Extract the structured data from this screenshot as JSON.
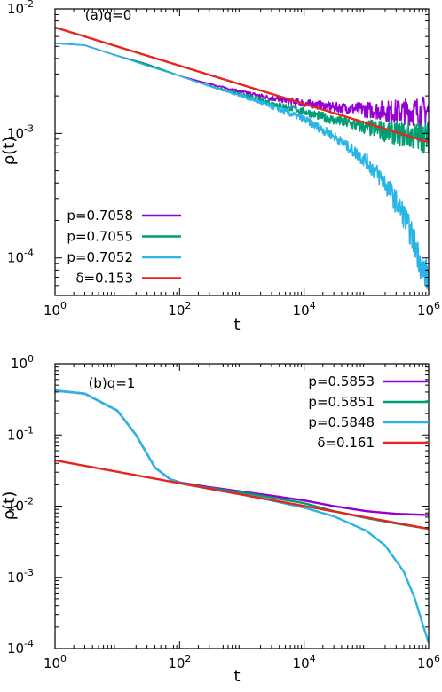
{
  "chart_data": [
    {
      "type": "line",
      "title": "(a)q=0",
      "xlabel": "t",
      "ylabel": "ρ(t)",
      "xscale": "log",
      "yscale": "log",
      "xlim": [
        1,
        1000000
      ],
      "ylim": [
        5e-05,
        0.01
      ],
      "x_ticks": [
        {
          "value": 1,
          "base": "10",
          "exp": "0"
        },
        {
          "value": 100,
          "base": "10",
          "exp": "2"
        },
        {
          "value": 10000,
          "base": "10",
          "exp": "4"
        },
        {
          "value": 1000000,
          "base": "10",
          "exp": "6"
        }
      ],
      "y_ticks": [
        {
          "value": 0.0001,
          "base": "10",
          "exp": "-4"
        },
        {
          "value": 0.001,
          "base": "10",
          "exp": "-3"
        },
        {
          "value": 0.01,
          "base": "10",
          "exp": "-2"
        }
      ],
      "legend_position": "bottom-left",
      "grid": false,
      "series": [
        {
          "name": "p=0.7058",
          "color": "#9400d3",
          "noisy": true,
          "x": [
            1,
            3,
            10,
            30,
            100,
            300,
            1000,
            3000,
            10000,
            30000,
            100000,
            300000,
            1000000
          ],
          "y": [
            0.0053,
            0.0051,
            0.0042,
            0.0036,
            0.0029,
            0.0025,
            0.00215,
            0.00192,
            0.00175,
            0.00162,
            0.00155,
            0.0015,
            0.0015
          ]
        },
        {
          "name": "p=0.7055",
          "color": "#009e73",
          "noisy": true,
          "x": [
            1,
            3,
            10,
            30,
            100,
            300,
            1000,
            3000,
            10000,
            30000,
            100000,
            300000,
            1000000
          ],
          "y": [
            0.0053,
            0.0051,
            0.0042,
            0.0036,
            0.0029,
            0.0024,
            0.00205,
            0.00175,
            0.0015,
            0.00128,
            0.00112,
            0.001,
            0.00092
          ]
        },
        {
          "name": "p=0.7052",
          "color": "#2ab4e8",
          "noisy": true,
          "x": [
            1,
            3,
            10,
            30,
            100,
            300,
            1000,
            3000,
            10000,
            30000,
            100000,
            200000,
            400000,
            600000,
            800000,
            1000000
          ],
          "y": [
            0.0053,
            0.0051,
            0.0042,
            0.0035,
            0.0029,
            0.0024,
            0.002,
            0.00165,
            0.0013,
            0.00095,
            0.0006,
            0.0004,
            0.00022,
            0.00013,
            8e-05,
            7e-05
          ]
        },
        {
          "name": "δ=0.153",
          "color": "#e8241c",
          "noisy": false,
          "x": [
            1,
            1000000
          ],
          "y": [
            0.0071,
            0.00085
          ]
        }
      ]
    },
    {
      "type": "line",
      "title": "(b)q=1",
      "xlabel": "t",
      "ylabel": "ρ(t)",
      "xscale": "log",
      "yscale": "log",
      "xlim": [
        1,
        1000000
      ],
      "ylim": [
        0.0001,
        1
      ],
      "x_ticks": [
        {
          "value": 1,
          "base": "10",
          "exp": "0"
        },
        {
          "value": 100,
          "base": "10",
          "exp": "2"
        },
        {
          "value": 10000,
          "base": "10",
          "exp": "4"
        },
        {
          "value": 1000000,
          "base": "10",
          "exp": "6"
        }
      ],
      "y_ticks": [
        {
          "value": 0.0001,
          "base": "10",
          "exp": "-4"
        },
        {
          "value": 0.001,
          "base": "10",
          "exp": "-3"
        },
        {
          "value": 0.01,
          "base": "10",
          "exp": "-2"
        },
        {
          "value": 0.1,
          "base": "10",
          "exp": "-1"
        },
        {
          "value": 1,
          "base": "10",
          "exp": "0"
        }
      ],
      "legend_position": "top-right",
      "grid": false,
      "series": [
        {
          "name": "p=0.5853",
          "color": "#9400d3",
          "noisy": false,
          "x": [
            1,
            3,
            10,
            20,
            40,
            70,
            100,
            300,
            1000,
            3000,
            10000,
            30000,
            100000,
            300000,
            1000000
          ],
          "y": [
            0.42,
            0.38,
            0.22,
            0.1,
            0.035,
            0.024,
            0.0215,
            0.0185,
            0.016,
            0.014,
            0.012,
            0.01,
            0.0085,
            0.0078,
            0.0075
          ]
        },
        {
          "name": "p=0.5851",
          "color": "#009e73",
          "noisy": false,
          "x": [
            1,
            3,
            10,
            20,
            40,
            70,
            100,
            300,
            1000,
            3000,
            10000,
            30000,
            100000,
            300000,
            1000000
          ],
          "y": [
            0.42,
            0.38,
            0.22,
            0.1,
            0.035,
            0.024,
            0.0213,
            0.018,
            0.0155,
            0.0132,
            0.011,
            0.0085,
            0.0068,
            0.0057,
            0.0048
          ]
        },
        {
          "name": "p=0.5848",
          "color": "#2ab4e8",
          "noisy": false,
          "x": [
            1,
            3,
            10,
            20,
            40,
            70,
            100,
            300,
            1000,
            3000,
            10000,
            30000,
            100000,
            200000,
            400000,
            600000,
            800000,
            1000000
          ],
          "y": [
            0.42,
            0.38,
            0.22,
            0.1,
            0.035,
            0.024,
            0.021,
            0.0175,
            0.0145,
            0.012,
            0.0095,
            0.0072,
            0.0045,
            0.0028,
            0.0012,
            0.0005,
            0.00022,
            0.00012
          ]
        },
        {
          "name": "δ=0.161",
          "color": "#e8241c",
          "noisy": false,
          "x": [
            1,
            1000000
          ],
          "y": [
            0.044,
            0.0048
          ]
        }
      ]
    }
  ]
}
